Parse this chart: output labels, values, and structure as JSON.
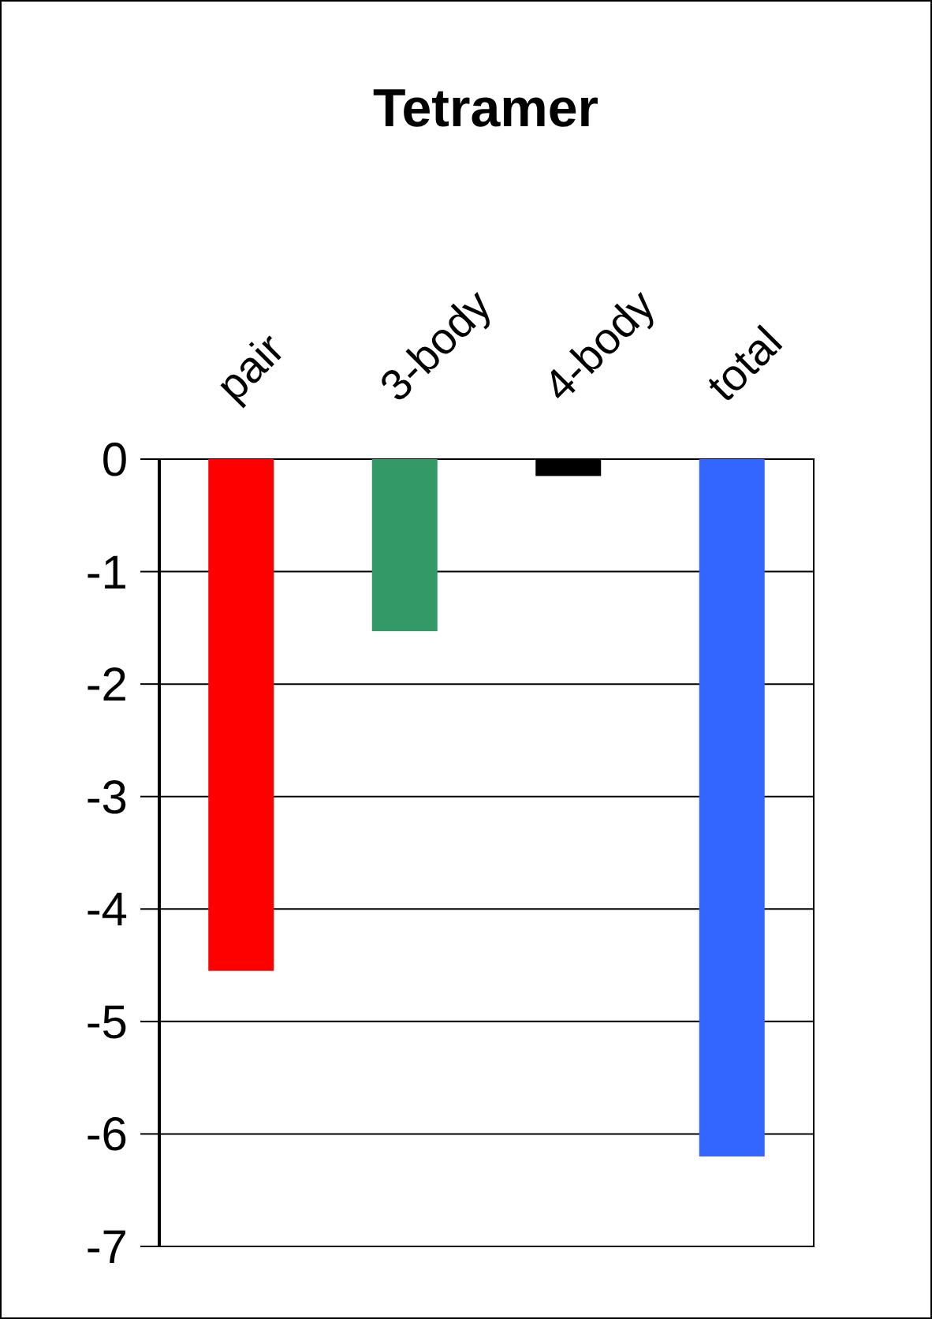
{
  "chart_data": {
    "type": "bar",
    "title": "Tetramer",
    "categories": [
      "pair",
      "3-body",
      "4-body",
      "total"
    ],
    "values": [
      -4.55,
      -1.53,
      -0.15,
      -6.2
    ],
    "colors": [
      "#ff0000",
      "#339966",
      "#000000",
      "#3366ff"
    ],
    "ylim": [
      -7,
      0
    ],
    "yticks": [
      0,
      -1,
      -2,
      -3,
      -4,
      -5,
      -6,
      -7
    ],
    "grid": "y"
  }
}
